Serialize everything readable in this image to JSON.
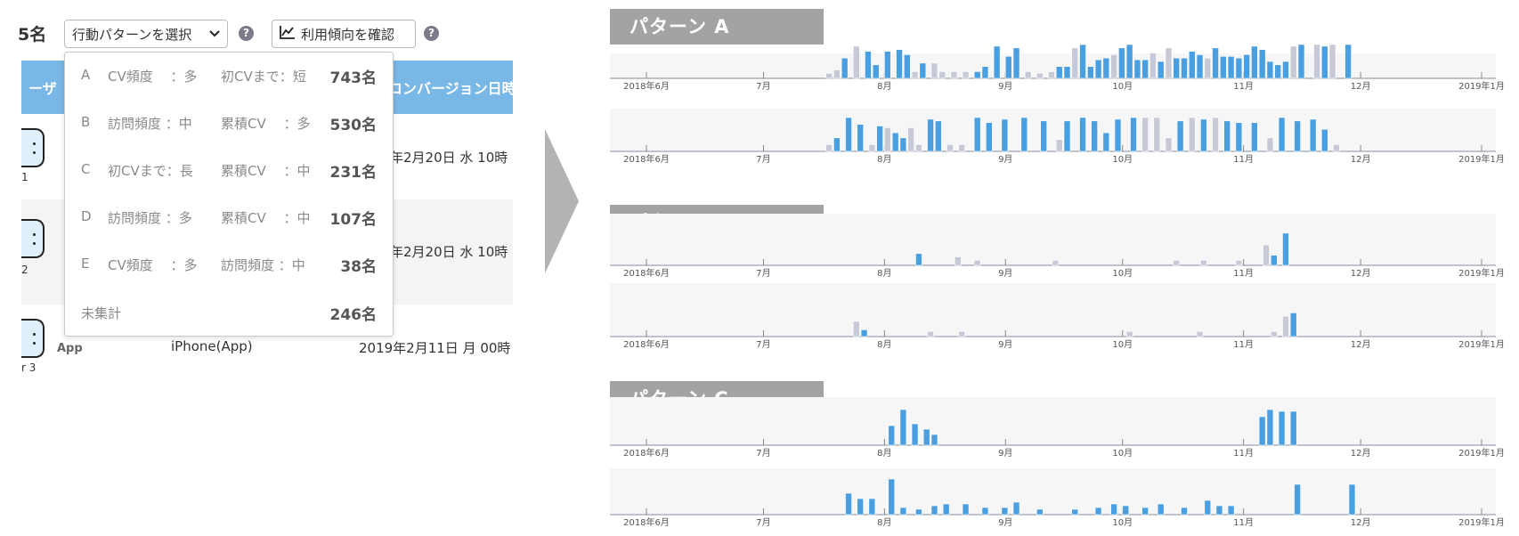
{
  "left": {
    "count_suffix": "5名",
    "pattern_select": {
      "label": "行動パターンを選択",
      "icon": "chevron-down-icon"
    },
    "help_icon_text": "?",
    "trend_button": {
      "label": "利用傾向を確認",
      "icon": "line-chart-icon"
    },
    "table": {
      "headers": {
        "user": "ーザ",
        "date": "コンバージョン日時"
      },
      "rows": [
        {
          "id": "1",
          "date": "年2月20日 水 10時"
        },
        {
          "id": "2",
          "date": "年2月20日 水 10時"
        },
        {
          "id": "r 3",
          "os": "App",
          "device": "iPhone(App)",
          "date": "2019年2月11日 月 00時"
        }
      ]
    },
    "dropdown": {
      "items": [
        {
          "letter": "A",
          "c1": "CV頻度 　：多",
          "c2": "初CVまで：短",
          "count": "743名"
        },
        {
          "letter": "B",
          "c1": "訪問頻度 ：中",
          "c2": "累積CV 　：多",
          "count": "530名"
        },
        {
          "letter": "C",
          "c1": "初CVまで：長",
          "c2": "累積CV 　：中",
          "count": "231名"
        },
        {
          "letter": "D",
          "c1": "訪問頻度 ：多",
          "c2": "累積CV 　：中",
          "count": "107名"
        },
        {
          "letter": "E",
          "c1": "CV頻度 　：多",
          "c2": "訪問頻度 ：中",
          "count": "38名"
        },
        {
          "letter": "",
          "c1": "未集計",
          "c2": "",
          "count": "246名"
        }
      ]
    }
  },
  "colors": {
    "accent": "#4a9fe0",
    "secondary_bar": "#c7cad6",
    "header_gray": "#a3a3a3",
    "table_head": "#79b7e6"
  },
  "chart_data": {
    "type": "bar",
    "x_axis": {
      "start": "2018-05-01",
      "end": "2019-01-01",
      "ticks": [
        {
          "date": "2018-06-01",
          "label": "2018年6月"
        },
        {
          "date": "2018-07-01",
          "label": "7月"
        },
        {
          "date": "2018-08-01",
          "label": "8月"
        },
        {
          "date": "2018-09-01",
          "label": "9月"
        },
        {
          "date": "2018-10-01",
          "label": "10月"
        },
        {
          "date": "2018-11-01",
          "label": "11月"
        },
        {
          "date": "2018-12-01",
          "label": "12月"
        },
        {
          "date": "2019-01-01",
          "label": "2019年1月"
        }
      ]
    },
    "patterns": [
      {
        "title": "パターン A",
        "users": [
          {
            "bars": [
              [
                "2018-07-17",
                0.15,
                "g"
              ],
              [
                "2018-07-19",
                0.25,
                "g"
              ],
              [
                "2018-07-21",
                0.6,
                "b"
              ],
              [
                "2018-07-24",
                0.95,
                "g"
              ],
              [
                "2018-07-27",
                0.8,
                "b"
              ],
              [
                "2018-07-29",
                0.4,
                "b"
              ],
              [
                "2018-08-01",
                0.8,
                "b"
              ],
              [
                "2018-08-04",
                0.85,
                "b"
              ],
              [
                "2018-08-06",
                0.7,
                "b"
              ],
              [
                "2018-08-08",
                0.2,
                "g"
              ],
              [
                "2018-08-10",
                0.45,
                "b"
              ],
              [
                "2018-08-13",
                0.45,
                "g"
              ],
              [
                "2018-08-15",
                0.2,
                "g"
              ],
              [
                "2018-08-18",
                0.2,
                "g"
              ],
              [
                "2018-08-21",
                0.2,
                "g"
              ],
              [
                "2018-08-24",
                0.2,
                "b"
              ],
              [
                "2018-08-26",
                0.35,
                "b"
              ],
              [
                "2018-08-29",
                0.95,
                "b"
              ],
              [
                "2018-09-01",
                0.65,
                "b"
              ],
              [
                "2018-09-03",
                0.9,
                "b"
              ],
              [
                "2018-09-06",
                0.2,
                "g"
              ],
              [
                "2018-09-09",
                0.15,
                "g"
              ],
              [
                "2018-09-12",
                0.2,
                "g"
              ],
              [
                "2018-09-14",
                0.35,
                "b"
              ],
              [
                "2018-09-16",
                0.35,
                "b"
              ],
              [
                "2018-09-18",
                0.9,
                "g"
              ],
              [
                "2018-09-20",
                1.0,
                "b"
              ],
              [
                "2018-09-22",
                0.35,
                "b"
              ],
              [
                "2018-09-24",
                0.55,
                "b"
              ],
              [
                "2018-09-26",
                0.6,
                "b"
              ],
              [
                "2018-09-28",
                0.7,
                "g"
              ],
              [
                "2018-09-30",
                0.9,
                "b"
              ],
              [
                "2018-10-02",
                1.0,
                "b"
              ],
              [
                "2018-10-04",
                0.55,
                "b"
              ],
              [
                "2018-10-06",
                0.55,
                "b"
              ],
              [
                "2018-10-08",
                0.75,
                "g"
              ],
              [
                "2018-10-10",
                0.5,
                "b"
              ],
              [
                "2018-10-12",
                0.9,
                "g"
              ],
              [
                "2018-10-14",
                0.6,
                "b"
              ],
              [
                "2018-10-16",
                0.6,
                "b"
              ],
              [
                "2018-10-18",
                0.8,
                "b"
              ],
              [
                "2018-10-20",
                0.7,
                "b"
              ],
              [
                "2018-10-22",
                0.6,
                "g"
              ],
              [
                "2018-10-24",
                0.9,
                "b"
              ],
              [
                "2018-10-26",
                0.65,
                "b"
              ],
              [
                "2018-10-28",
                0.65,
                "b"
              ],
              [
                "2018-10-30",
                0.6,
                "b"
              ],
              [
                "2018-11-01",
                0.7,
                "b"
              ],
              [
                "2018-11-03",
                0.95,
                "b"
              ],
              [
                "2018-11-05",
                0.85,
                "b"
              ],
              [
                "2018-11-07",
                0.5,
                "b"
              ],
              [
                "2018-11-09",
                0.4,
                "b"
              ],
              [
                "2018-11-11",
                0.5,
                "b"
              ],
              [
                "2018-11-13",
                0.95,
                "g"
              ],
              [
                "2018-11-15",
                1.0,
                "b"
              ],
              [
                "2018-11-19",
                1.0,
                "g"
              ],
              [
                "2018-11-21",
                0.95,
                "b"
              ],
              [
                "2018-11-23",
                1.0,
                "g"
              ],
              [
                "2018-11-27",
                1.0,
                "b"
              ]
            ]
          },
          {
            "bars": [
              [
                "2018-07-17",
                0.2,
                "g"
              ],
              [
                "2018-07-19",
                0.4,
                "b"
              ],
              [
                "2018-07-22",
                1.0,
                "b"
              ],
              [
                "2018-07-25",
                0.8,
                "b"
              ],
              [
                "2018-07-28",
                0.2,
                "g"
              ],
              [
                "2018-07-30",
                0.75,
                "b"
              ],
              [
                "2018-08-01",
                0.7,
                "g"
              ],
              [
                "2018-08-03",
                0.55,
                "b"
              ],
              [
                "2018-08-05",
                0.4,
                "b"
              ],
              [
                "2018-08-07",
                0.7,
                "g"
              ],
              [
                "2018-08-09",
                0.2,
                "g"
              ],
              [
                "2018-08-12",
                0.95,
                "b"
              ],
              [
                "2018-08-14",
                0.9,
                "b"
              ],
              [
                "2018-08-17",
                0.2,
                "g"
              ],
              [
                "2018-08-20",
                0.2,
                "g"
              ],
              [
                "2018-08-24",
                1.0,
                "b"
              ],
              [
                "2018-08-27",
                0.85,
                "b"
              ],
              [
                "2018-08-31",
                0.95,
                "b"
              ],
              [
                "2018-09-05",
                1.0,
                "b"
              ],
              [
                "2018-09-10",
                0.9,
                "b"
              ],
              [
                "2018-09-14",
                0.35,
                "g"
              ],
              [
                "2018-09-16",
                0.9,
                "b"
              ],
              [
                "2018-09-20",
                1.0,
                "b"
              ],
              [
                "2018-09-23",
                0.9,
                "b"
              ],
              [
                "2018-09-26",
                0.55,
                "b"
              ],
              [
                "2018-09-29",
                0.95,
                "b"
              ],
              [
                "2018-10-03",
                1.0,
                "b"
              ],
              [
                "2018-10-06",
                1.0,
                "g"
              ],
              [
                "2018-10-09",
                1.0,
                "g"
              ],
              [
                "2018-10-12",
                0.4,
                "g"
              ],
              [
                "2018-10-15",
                0.9,
                "b"
              ],
              [
                "2018-10-18",
                1.0,
                "g"
              ],
              [
                "2018-10-21",
                0.95,
                "b"
              ],
              [
                "2018-10-24",
                1.0,
                "g"
              ],
              [
                "2018-10-27",
                0.9,
                "b"
              ],
              [
                "2018-10-30",
                0.85,
                "b"
              ],
              [
                "2018-11-03",
                0.85,
                "b"
              ],
              [
                "2018-11-07",
                0.4,
                "g"
              ],
              [
                "2018-11-10",
                1.0,
                "b"
              ],
              [
                "2018-11-14",
                0.9,
                "b"
              ],
              [
                "2018-11-18",
                0.95,
                "b"
              ],
              [
                "2018-11-21",
                0.65,
                "b"
              ],
              [
                "2018-11-24",
                0.2,
                "g"
              ]
            ]
          }
        ]
      },
      {
        "title": "パターン B",
        "users": [
          {
            "bars": [
              [
                "2018-08-09",
                0.35,
                "b"
              ],
              [
                "2018-08-19",
                0.25,
                "g"
              ],
              [
                "2018-08-24",
                0.15,
                "g"
              ],
              [
                "2018-09-13",
                0.15,
                "g"
              ],
              [
                "2018-10-14",
                0.15,
                "g"
              ],
              [
                "2018-10-21",
                0.15,
                "g"
              ],
              [
                "2018-10-30",
                0.15,
                "g"
              ],
              [
                "2018-11-06",
                0.6,
                "g"
              ],
              [
                "2018-11-08",
                0.3,
                "b"
              ],
              [
                "2018-11-11",
                0.95,
                "b"
              ]
            ]
          },
          {
            "bars": [
              [
                "2018-07-24",
                0.45,
                "g"
              ],
              [
                "2018-07-26",
                0.2,
                "b"
              ],
              [
                "2018-08-12",
                0.15,
                "g"
              ],
              [
                "2018-08-20",
                0.15,
                "g"
              ],
              [
                "2018-10-02",
                0.15,
                "g"
              ],
              [
                "2018-10-20",
                0.15,
                "g"
              ],
              [
                "2018-11-08",
                0.15,
                "g"
              ],
              [
                "2018-11-11",
                0.6,
                "g"
              ],
              [
                "2018-11-13",
                0.7,
                "b"
              ]
            ]
          }
        ]
      },
      {
        "title": "パターン C",
        "users": [
          {
            "bars": [
              [
                "2018-08-02",
                0.55,
                "b"
              ],
              [
                "2018-08-05",
                1.0,
                "b"
              ],
              [
                "2018-08-08",
                0.6,
                "b"
              ],
              [
                "2018-08-11",
                0.45,
                "b"
              ],
              [
                "2018-08-13",
                0.3,
                "b"
              ],
              [
                "2018-11-05",
                0.8,
                "b"
              ],
              [
                "2018-11-07",
                1.0,
                "b"
              ],
              [
                "2018-11-10",
                0.95,
                "b"
              ],
              [
                "2018-11-13",
                0.95,
                "b"
              ]
            ]
          },
          {
            "bars": [
              [
                "2018-07-22",
                0.6,
                "b"
              ],
              [
                "2018-07-25",
                0.45,
                "b"
              ],
              [
                "2018-07-28",
                0.45,
                "b"
              ],
              [
                "2018-08-02",
                1.0,
                "b"
              ],
              [
                "2018-08-05",
                0.2,
                "b"
              ],
              [
                "2018-08-09",
                0.15,
                "b"
              ],
              [
                "2018-08-13",
                0.25,
                "b"
              ],
              [
                "2018-08-16",
                0.3,
                "b"
              ],
              [
                "2018-08-21",
                0.3,
                "b"
              ],
              [
                "2018-08-26",
                0.2,
                "b"
              ],
              [
                "2018-08-31",
                0.2,
                "b"
              ],
              [
                "2018-09-03",
                0.35,
                "b"
              ],
              [
                "2018-09-09",
                0.15,
                "b"
              ],
              [
                "2018-09-18",
                0.15,
                "b"
              ],
              [
                "2018-09-24",
                0.2,
                "b"
              ],
              [
                "2018-09-28",
                0.3,
                "b"
              ],
              [
                "2018-10-01",
                0.25,
                "b"
              ],
              [
                "2018-10-06",
                0.2,
                "b"
              ],
              [
                "2018-10-10",
                0.3,
                "b"
              ],
              [
                "2018-10-16",
                0.2,
                "b"
              ],
              [
                "2018-10-22",
                0.4,
                "b"
              ],
              [
                "2018-10-25",
                0.25,
                "b"
              ],
              [
                "2018-10-28",
                0.25,
                "b"
              ],
              [
                "2018-11-14",
                0.85,
                "b"
              ],
              [
                "2018-11-28",
                0.85,
                "b"
              ]
            ]
          }
        ]
      }
    ]
  }
}
